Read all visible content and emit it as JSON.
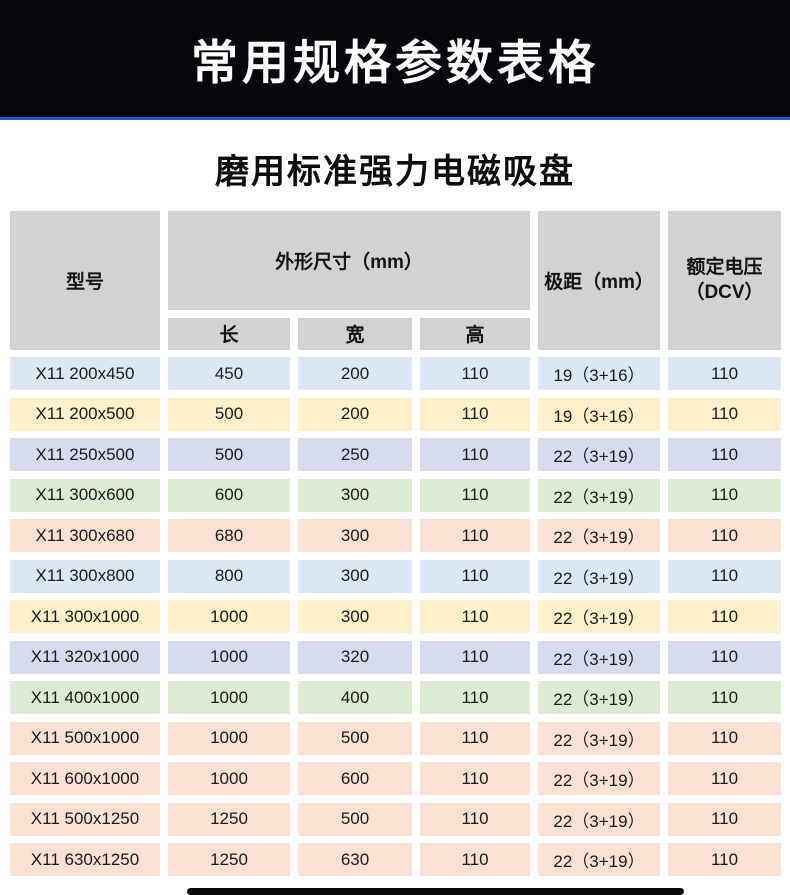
{
  "banner": {
    "title": "常用规格参数表格"
  },
  "page": {
    "subtitle": "磨用标准强力电磁吸盘"
  },
  "colors": {
    "banner_bg": "#06060d",
    "banner_accent_line": "#1e5ec6",
    "header_gray": "#d2d2d2",
    "row_blue": "#dbe7f3",
    "row_yellow": "#fdf0cb",
    "row_lavender": "#d6dcee",
    "row_green": "#ddebd4",
    "row_peach": "#fbe1d3"
  },
  "table": {
    "headers": {
      "model": "型号",
      "dimensions": "外形尺寸（mm）",
      "length": "长",
      "width": "宽",
      "height": "高",
      "pole_pitch": "极距（mm）",
      "voltage_line1": "额定电压",
      "voltage_line2": "（DCV）"
    },
    "rows": [
      {
        "model": "X11 200x450",
        "length": "450",
        "width": "200",
        "height": "110",
        "pole_pitch": "19（3+16）",
        "voltage": "110",
        "color": "blue"
      },
      {
        "model": "X11 200x500",
        "length": "500",
        "width": "200",
        "height": "110",
        "pole_pitch": "19（3+16）",
        "voltage": "110",
        "color": "yellow"
      },
      {
        "model": "X11 250x500",
        "length": "500",
        "width": "250",
        "height": "110",
        "pole_pitch": "22（3+19）",
        "voltage": "110",
        "color": "lavender"
      },
      {
        "model": "X11 300x600",
        "length": "600",
        "width": "300",
        "height": "110",
        "pole_pitch": "22（3+19）",
        "voltage": "110",
        "color": "green"
      },
      {
        "model": "X11 300x680",
        "length": "680",
        "width": "300",
        "height": "110",
        "pole_pitch": "22（3+19）",
        "voltage": "110",
        "color": "peach"
      },
      {
        "model": "X11 300x800",
        "length": "800",
        "width": "300",
        "height": "110",
        "pole_pitch": "22（3+19）",
        "voltage": "110",
        "color": "blue"
      },
      {
        "model": "X11 300x1000",
        "length": "1000",
        "width": "300",
        "height": "110",
        "pole_pitch": "22（3+19）",
        "voltage": "110",
        "color": "yellow"
      },
      {
        "model": "X11 320x1000",
        "length": "1000",
        "width": "320",
        "height": "110",
        "pole_pitch": "22（3+19）",
        "voltage": "110",
        "color": "lavender"
      },
      {
        "model": "X11 400x1000",
        "length": "1000",
        "width": "400",
        "height": "110",
        "pole_pitch": "22（3+19）",
        "voltage": "110",
        "color": "green"
      },
      {
        "model": "X11 500x1000",
        "length": "1000",
        "width": "500",
        "height": "110",
        "pole_pitch": "22（3+19）",
        "voltage": "110",
        "color": "peach"
      },
      {
        "model": "X11 600x1000",
        "length": "1000",
        "width": "600",
        "height": "110",
        "pole_pitch": "22（3+19）",
        "voltage": "110",
        "color": "peach"
      },
      {
        "model": "X11 500x1250",
        "length": "1250",
        "width": "500",
        "height": "110",
        "pole_pitch": "22（3+19）",
        "voltage": "110",
        "color": "peach"
      },
      {
        "model": "X11 630x1250",
        "length": "1250",
        "width": "630",
        "height": "110",
        "pole_pitch": "22（3+19）",
        "voltage": "110",
        "color": "peach"
      }
    ]
  }
}
